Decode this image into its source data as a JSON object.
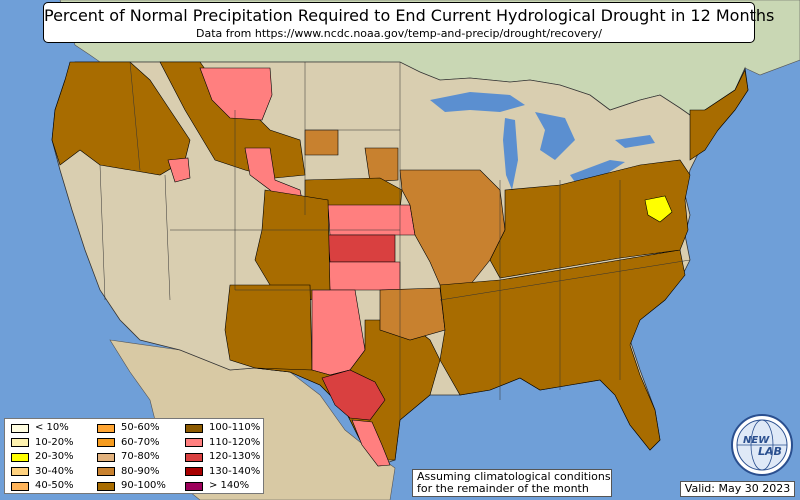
{
  "header": {
    "title": "Percent of Normal Precipitation Required to End Current Hydrological Drought in 12 Months",
    "subtitle": "Data from https://www.ncdc.noaa.gov/temp-and-precip/drought/recovery/"
  },
  "legend": {
    "items": [
      {
        "label": "< 10%",
        "color": "#fffde0"
      },
      {
        "label": "10-20%",
        "color": "#fff3b0"
      },
      {
        "label": "20-30%",
        "color": "#ffff00"
      },
      {
        "label": "30-40%",
        "color": "#ffd27f"
      },
      {
        "label": "40-50%",
        "color": "#ffb45a"
      },
      {
        "label": "50-60%",
        "color": "#ffa533"
      },
      {
        "label": "60-70%",
        "color": "#f59b1e"
      },
      {
        "label": "70-80%",
        "color": "#e2b27e"
      },
      {
        "label": "80-90%",
        "color": "#c8812f"
      },
      {
        "label": "90-100%",
        "color": "#a86c00"
      },
      {
        "label": "100-110%",
        "color": "#8c5a00"
      },
      {
        "label": "110-120%",
        "color": "#ff7f7f"
      },
      {
        "label": "120-130%",
        "color": "#d94040"
      },
      {
        "label": "130-140%",
        "color": "#a80000"
      },
      {
        "label": "> 140%",
        "color": "#9c005a"
      }
    ]
  },
  "footer": {
    "note_line1": "Assuming climatological conditions",
    "note_line2": "for the remainder of the month",
    "valid": "Valid: May 30 2023"
  },
  "logo": {
    "text_top": "NEW",
    "text_bottom": "LAB",
    "icon": "globe-logo-icon"
  },
  "map_colors": {
    "ocean": "#6f9fd8",
    "land": "#d9ceb0",
    "canada": "#c9d7b4",
    "mexico": "#d8c9a4",
    "lake": "#5b8fd0",
    "brown": "#a86c00",
    "light_brown": "#c8812f",
    "dark_brown": "#8c5a00",
    "pink": "#ff7f7f",
    "red": "#d94040",
    "yellow": "#ffff00"
  }
}
